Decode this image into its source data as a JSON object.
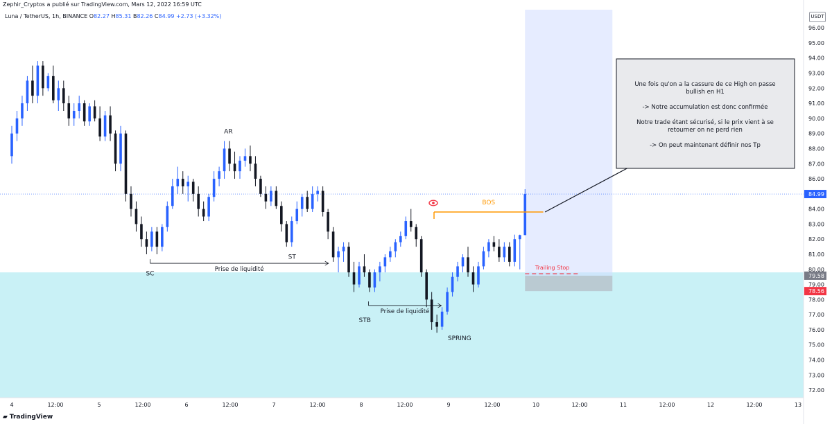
{
  "header": {
    "publisher": "Zephir_Cryptos a publié sur TradingView.com, Mars 12, 2022 16:59 UTC",
    "symbol": "Luna / TetherUS, 1h, BINANCE",
    "o_label": "O",
    "o": "82.27",
    "h_label": "H",
    "h": "85.31",
    "l_label": "B",
    "l": "82.26",
    "c_label": "C",
    "c": "84.99",
    "change": "+2.73 (+3.32%)"
  },
  "currency": "USDT",
  "footer": {
    "logo": "TradingView"
  },
  "colors": {
    "up": "#2962ff",
    "down": "#131722",
    "accent_orange": "#ff9800",
    "trailing": "#f23645",
    "zone_cyan": "#b2ebf2",
    "zone_blue": "#d1dcff",
    "zone_gray": "#b2b5be"
  },
  "chart_data": {
    "type": "candlestick",
    "y_axis_ticks": [
      "72.00",
      "73.00",
      "74.00",
      "75.00",
      "76.00",
      "77.00",
      "78.00",
      "79.00",
      "80.00",
      "81.00",
      "82.00",
      "83.00",
      "84.00",
      "85.00",
      "86.00",
      "87.00",
      "88.00",
      "89.00",
      "90.00",
      "91.00",
      "92.00",
      "93.00",
      "94.00",
      "95.00",
      "96.00"
    ],
    "x_axis_ticks": [
      "4",
      "12:00",
      "5",
      "12:00",
      "6",
      "12:00",
      "7",
      "12:00",
      "8",
      "12:00",
      "9",
      "12:00",
      "10",
      "12:00",
      "11",
      "12:00",
      "12",
      "12:00",
      "13"
    ],
    "ylim": [
      71.5,
      97.2
    ],
    "x_hours_range": [
      0,
      216
    ],
    "price_labels": [
      {
        "value": 84.99,
        "text": "84.99",
        "color": "#2962ff"
      },
      {
        "value": 79.58,
        "text": "79.58",
        "color": "#787b86"
      },
      {
        "value": 78.56,
        "text": "78.56",
        "color": "#f23645"
      }
    ],
    "candles": [
      {
        "o": 87.5,
        "h": 89.5,
        "l": 87.0,
        "c": 89.0
      },
      {
        "o": 89.0,
        "h": 90.5,
        "l": 88.5,
        "c": 90.0
      },
      {
        "o": 90.0,
        "h": 91.5,
        "l": 89.5,
        "c": 91.0
      },
      {
        "o": 91.0,
        "h": 92.8,
        "l": 90.5,
        "c": 92.5
      },
      {
        "o": 92.5,
        "h": 93.5,
        "l": 91.0,
        "c": 91.5
      },
      {
        "o": 91.5,
        "h": 93.8,
        "l": 91.0,
        "c": 93.5
      },
      {
        "o": 93.5,
        "h": 93.8,
        "l": 91.5,
        "c": 92.0
      },
      {
        "o": 92.0,
        "h": 93.0,
        "l": 91.8,
        "c": 92.8
      },
      {
        "o": 92.8,
        "h": 93.5,
        "l": 91.0,
        "c": 91.2
      },
      {
        "o": 91.2,
        "h": 92.5,
        "l": 90.5,
        "c": 92.0
      },
      {
        "o": 92.0,
        "h": 92.5,
        "l": 90.5,
        "c": 91.0
      },
      {
        "o": 91.0,
        "h": 91.5,
        "l": 89.5,
        "c": 90.0
      },
      {
        "o": 90.0,
        "h": 91.0,
        "l": 89.5,
        "c": 90.5
      },
      {
        "o": 90.5,
        "h": 91.5,
        "l": 90.0,
        "c": 91.0
      },
      {
        "o": 91.0,
        "h": 91.2,
        "l": 89.5,
        "c": 89.8
      },
      {
        "o": 89.8,
        "h": 91.0,
        "l": 89.5,
        "c": 90.8
      },
      {
        "o": 90.8,
        "h": 91.2,
        "l": 89.8,
        "c": 90.0
      },
      {
        "o": 90.0,
        "h": 90.8,
        "l": 88.5,
        "c": 88.8
      },
      {
        "o": 88.8,
        "h": 90.5,
        "l": 88.5,
        "c": 90.2
      },
      {
        "o": 90.2,
        "h": 90.8,
        "l": 88.5,
        "c": 89.0
      },
      {
        "o": 89.0,
        "h": 89.2,
        "l": 86.5,
        "c": 87.0
      },
      {
        "o": 87.0,
        "h": 89.5,
        "l": 86.5,
        "c": 89.0
      },
      {
        "o": 89.0,
        "h": 89.2,
        "l": 84.5,
        "c": 85.0
      },
      {
        "o": 85.0,
        "h": 85.5,
        "l": 83.5,
        "c": 84.0
      },
      {
        "o": 84.0,
        "h": 84.5,
        "l": 82.5,
        "c": 83.0
      },
      {
        "o": 83.0,
        "h": 83.5,
        "l": 81.5,
        "c": 82.0
      },
      {
        "o": 82.0,
        "h": 82.5,
        "l": 81.0,
        "c": 81.5
      },
      {
        "o": 81.5,
        "h": 82.8,
        "l": 81.2,
        "c": 82.5
      },
      {
        "o": 82.5,
        "h": 82.8,
        "l": 81.0,
        "c": 81.5
      },
      {
        "o": 81.5,
        "h": 83.0,
        "l": 81.2,
        "c": 82.8
      },
      {
        "o": 82.8,
        "h": 84.5,
        "l": 82.5,
        "c": 84.2
      },
      {
        "o": 84.2,
        "h": 86.0,
        "l": 84.0,
        "c": 85.5
      },
      {
        "o": 85.5,
        "h": 86.8,
        "l": 85.0,
        "c": 86.0
      },
      {
        "o": 86.0,
        "h": 86.5,
        "l": 85.0,
        "c": 85.5
      },
      {
        "o": 85.5,
        "h": 86.2,
        "l": 84.5,
        "c": 85.8
      },
      {
        "o": 85.8,
        "h": 86.0,
        "l": 84.5,
        "c": 85.0
      },
      {
        "o": 85.0,
        "h": 85.5,
        "l": 83.5,
        "c": 84.0
      },
      {
        "o": 84.0,
        "h": 84.5,
        "l": 83.2,
        "c": 83.5
      },
      {
        "o": 83.5,
        "h": 85.0,
        "l": 83.2,
        "c": 84.8
      },
      {
        "o": 84.8,
        "h": 86.5,
        "l": 84.5,
        "c": 86.0
      },
      {
        "o": 86.0,
        "h": 86.8,
        "l": 85.5,
        "c": 86.5
      },
      {
        "o": 86.5,
        "h": 88.5,
        "l": 86.0,
        "c": 88.0
      },
      {
        "o": 88.0,
        "h": 88.5,
        "l": 86.5,
        "c": 87.0
      },
      {
        "o": 87.0,
        "h": 87.8,
        "l": 86.0,
        "c": 86.5
      },
      {
        "o": 86.5,
        "h": 87.5,
        "l": 86.0,
        "c": 87.2
      },
      {
        "o": 87.2,
        "h": 88.0,
        "l": 86.8,
        "c": 87.5
      },
      {
        "o": 87.5,
        "h": 88.2,
        "l": 86.5,
        "c": 87.0
      },
      {
        "o": 87.0,
        "h": 87.5,
        "l": 85.5,
        "c": 86.0
      },
      {
        "o": 86.0,
        "h": 86.2,
        "l": 84.8,
        "c": 85.0
      },
      {
        "o": 85.0,
        "h": 85.5,
        "l": 84.0,
        "c": 84.5
      },
      {
        "o": 84.5,
        "h": 85.5,
        "l": 84.2,
        "c": 85.2
      },
      {
        "o": 85.2,
        "h": 85.5,
        "l": 84.0,
        "c": 84.2
      },
      {
        "o": 84.2,
        "h": 84.5,
        "l": 82.5,
        "c": 83.0
      },
      {
        "o": 83.0,
        "h": 83.2,
        "l": 81.5,
        "c": 81.8
      },
      {
        "o": 81.8,
        "h": 83.5,
        "l": 81.5,
        "c": 83.2
      },
      {
        "o": 83.2,
        "h": 84.5,
        "l": 83.0,
        "c": 84.0
      },
      {
        "o": 84.0,
        "h": 85.0,
        "l": 83.5,
        "c": 84.8
      },
      {
        "o": 84.8,
        "h": 85.2,
        "l": 83.8,
        "c": 84.0
      },
      {
        "o": 84.0,
        "h": 85.5,
        "l": 83.8,
        "c": 85.0
      },
      {
        "o": 85.0,
        "h": 85.5,
        "l": 84.5,
        "c": 85.2
      },
      {
        "o": 85.2,
        "h": 85.5,
        "l": 83.5,
        "c": 83.8
      },
      {
        "o": 83.8,
        "h": 84.0,
        "l": 82.0,
        "c": 82.5
      },
      {
        "o": 82.5,
        "h": 82.8,
        "l": 80.5,
        "c": 80.8
      },
      {
        "o": 80.8,
        "h": 81.5,
        "l": 79.8,
        "c": 81.2
      },
      {
        "o": 81.2,
        "h": 81.8,
        "l": 80.5,
        "c": 81.5
      },
      {
        "o": 81.5,
        "h": 81.8,
        "l": 79.5,
        "c": 79.8
      },
      {
        "o": 79.8,
        "h": 80.5,
        "l": 78.5,
        "c": 79.0
      },
      {
        "o": 79.0,
        "h": 80.5,
        "l": 78.8,
        "c": 80.2
      },
      {
        "o": 80.2,
        "h": 81.0,
        "l": 79.5,
        "c": 79.8
      },
      {
        "o": 79.8,
        "h": 80.0,
        "l": 78.5,
        "c": 78.8
      },
      {
        "o": 78.8,
        "h": 80.0,
        "l": 78.5,
        "c": 79.8
      },
      {
        "o": 79.8,
        "h": 80.5,
        "l": 79.2,
        "c": 80.2
      },
      {
        "o": 80.2,
        "h": 81.0,
        "l": 79.8,
        "c": 80.8
      },
      {
        "o": 80.8,
        "h": 81.5,
        "l": 80.5,
        "c": 81.2
      },
      {
        "o": 81.2,
        "h": 82.0,
        "l": 80.8,
        "c": 81.8
      },
      {
        "o": 81.8,
        "h": 82.5,
        "l": 81.5,
        "c": 82.2
      },
      {
        "o": 82.2,
        "h": 83.5,
        "l": 82.0,
        "c": 83.2
      },
      {
        "o": 83.2,
        "h": 84.0,
        "l": 82.5,
        "c": 82.8
      },
      {
        "o": 82.8,
        "h": 83.0,
        "l": 81.5,
        "c": 82.0
      },
      {
        "o": 82.0,
        "h": 82.2,
        "l": 79.5,
        "c": 79.8
      },
      {
        "o": 79.8,
        "h": 80.0,
        "l": 77.5,
        "c": 78.0
      },
      {
        "o": 78.0,
        "h": 78.5,
        "l": 76.0,
        "c": 76.5
      },
      {
        "o": 76.5,
        "h": 77.0,
        "l": 75.8,
        "c": 76.2
      },
      {
        "o": 76.2,
        "h": 77.5,
        "l": 76.0,
        "c": 77.2
      },
      {
        "o": 77.2,
        "h": 78.8,
        "l": 77.0,
        "c": 78.5
      },
      {
        "o": 78.5,
        "h": 79.8,
        "l": 78.2,
        "c": 79.5
      },
      {
        "o": 79.5,
        "h": 80.5,
        "l": 79.2,
        "c": 80.2
      },
      {
        "o": 80.2,
        "h": 81.0,
        "l": 79.8,
        "c": 80.8
      },
      {
        "o": 80.8,
        "h": 81.5,
        "l": 79.5,
        "c": 79.8
      },
      {
        "o": 79.8,
        "h": 80.2,
        "l": 78.5,
        "c": 79.0
      },
      {
        "o": 79.0,
        "h": 80.5,
        "l": 78.8,
        "c": 80.2
      },
      {
        "o": 80.2,
        "h": 81.5,
        "l": 80.0,
        "c": 81.2
      },
      {
        "o": 81.2,
        "h": 82.0,
        "l": 80.8,
        "c": 81.8
      },
      {
        "o": 81.8,
        "h": 82.2,
        "l": 81.2,
        "c": 81.5
      },
      {
        "o": 81.5,
        "h": 82.0,
        "l": 80.5,
        "c": 80.8
      },
      {
        "o": 80.8,
        "h": 81.8,
        "l": 80.5,
        "c": 81.5
      },
      {
        "o": 81.5,
        "h": 81.8,
        "l": 80.2,
        "c": 80.5
      },
      {
        "o": 80.5,
        "h": 82.3,
        "l": 80.2,
        "c": 82.0
      },
      {
        "o": 82.0,
        "h": 82.3,
        "l": 80.0,
        "c": 82.27
      },
      {
        "o": 82.27,
        "h": 85.31,
        "l": 82.26,
        "c": 84.99
      }
    ],
    "overlays": {
      "cyan_zone": {
        "from_price": 71.5,
        "to_price": 79.8
      },
      "blue_position": {
        "from_hour": 141,
        "to_hour": 165,
        "top_price": 97.2,
        "bottom_price": 79.58
      },
      "gray_stop": {
        "from_hour": 141,
        "to_hour": 165,
        "top_price": 79.58,
        "bottom_price": 78.56
      },
      "bos_line": {
        "from_hour": 116,
        "to_hour": 146,
        "price": 83.8
      },
      "trailing_stop": {
        "from_hour": 141,
        "to_hour": 156,
        "price": 79.8
      },
      "arrow": {
        "from_hour": 146.5,
        "from_price": 83.8,
        "to_hour": 173,
        "to_price": 87.2
      }
    },
    "labels": [
      {
        "text": "AR",
        "hour": 59.5,
        "price": 89.0
      },
      {
        "text": "ST",
        "hour": 77,
        "price": 80.7
      },
      {
        "text": "SC",
        "hour": 38,
        "price": 79.6
      },
      {
        "text": "STB",
        "hour": 97,
        "price": 76.5
      },
      {
        "text": "SPRING",
        "hour": 123,
        "price": 75.3
      },
      {
        "text": "BOS",
        "hour": 131,
        "price": 84.3
      }
    ],
    "liquidity_lines": [
      {
        "label": "Prise de liquidité",
        "from_hour": 38,
        "to_hour": 87,
        "price": 80.4
      },
      {
        "label": "Prise de liquidité",
        "from_hour": 98,
        "to_hour": 118,
        "price": 77.6
      }
    ],
    "trailing_label": "Trailing Stop",
    "note": {
      "lines": [
        "Une fois qu'on a la cassure de ce High on passe",
        "bullish en H1",
        "",
        "-> Notre accumulation est donc confirmée",
        "",
        "Notre trade étant sécurisé, si le prix vient à se",
        "retourner on ne perd rien",
        "",
        "-> On peut maintenant définir nos Tp"
      ]
    }
  }
}
